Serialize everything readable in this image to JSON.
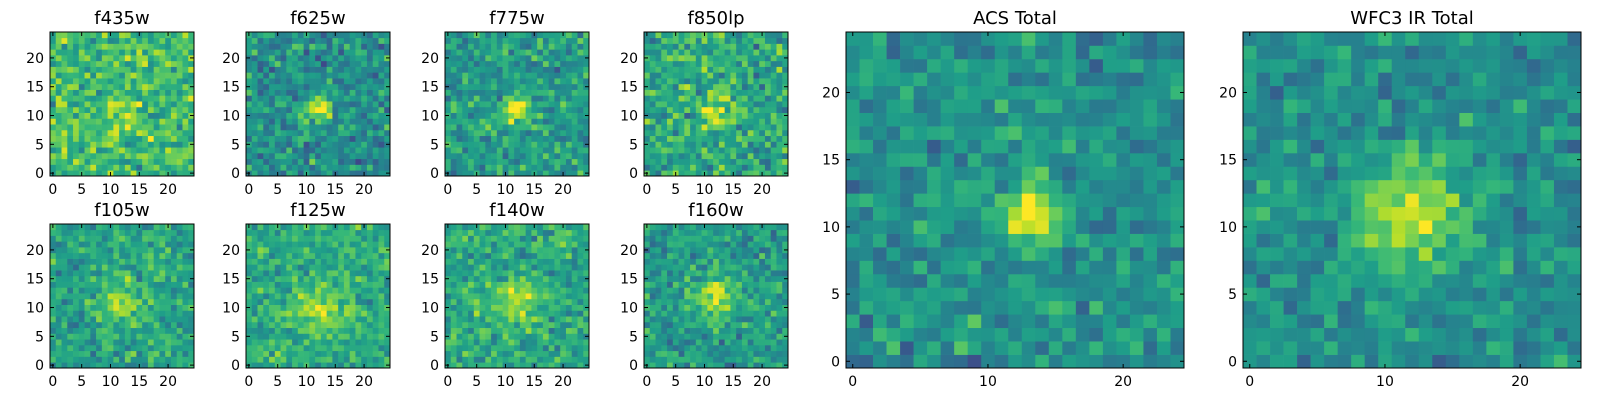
{
  "chart_data": [
    {
      "type": "heatmap",
      "title": "f435w",
      "colormap": "viridis",
      "grid_size": [
        25,
        25
      ],
      "xlim": [
        -0.5,
        24.5
      ],
      "ylim": [
        -0.5,
        24.5
      ],
      "xticks": [
        0,
        5,
        10,
        15,
        20
      ],
      "yticks": [
        0,
        5,
        10,
        15,
        20
      ],
      "xtick_labels": [
        "0",
        "5",
        "10",
        "15",
        "20"
      ],
      "ytick_labels": [
        "0",
        "5",
        "10",
        "15",
        "20"
      ],
      "source": {
        "x": 12,
        "y": 11,
        "strength": 0.15,
        "width": 2.0
      },
      "noise": 0.32,
      "base": 0.68,
      "seed": 11
    },
    {
      "type": "heatmap",
      "title": "f625w",
      "colormap": "viridis",
      "grid_size": [
        25,
        25
      ],
      "xlim": [
        -0.5,
        24.5
      ],
      "ylim": [
        -0.5,
        24.5
      ],
      "xticks": [
        0,
        5,
        10,
        15,
        20
      ],
      "yticks": [
        0,
        5,
        10,
        15,
        20
      ],
      "xtick_labels": [
        "0",
        "5",
        "10",
        "15",
        "20"
      ],
      "ytick_labels": [
        "0",
        "5",
        "10",
        "15",
        "20"
      ],
      "source": {
        "x": 12,
        "y": 11,
        "strength": 0.5,
        "width": 1.5
      },
      "noise": 0.3,
      "base": 0.5,
      "seed": 23
    },
    {
      "type": "heatmap",
      "title": "f775w",
      "colormap": "viridis",
      "grid_size": [
        25,
        25
      ],
      "xlim": [
        -0.5,
        24.5
      ],
      "ylim": [
        -0.5,
        24.5
      ],
      "xticks": [
        0,
        5,
        10,
        15,
        20
      ],
      "yticks": [
        0,
        5,
        10,
        15,
        20
      ],
      "xtick_labels": [
        "0",
        "5",
        "10",
        "15",
        "20"
      ],
      "ytick_labels": [
        "0",
        "5",
        "10",
        "15",
        "20"
      ],
      "source": {
        "x": 12,
        "y": 11,
        "strength": 0.45,
        "width": 1.6
      },
      "noise": 0.28,
      "base": 0.55,
      "seed": 37
    },
    {
      "type": "heatmap",
      "title": "f850lp",
      "colormap": "viridis",
      "grid_size": [
        25,
        25
      ],
      "xlim": [
        -0.5,
        24.5
      ],
      "ylim": [
        -0.5,
        24.5
      ],
      "xticks": [
        0,
        5,
        10,
        15,
        20
      ],
      "yticks": [
        0,
        5,
        10,
        15,
        20
      ],
      "xtick_labels": [
        "0",
        "5",
        "10",
        "15",
        "20"
      ],
      "ytick_labels": [
        "0",
        "5",
        "10",
        "15",
        "20"
      ],
      "source": {
        "x": 12,
        "y": 11,
        "strength": 0.35,
        "width": 1.8
      },
      "noise": 0.32,
      "base": 0.6,
      "seed": 41
    },
    {
      "type": "heatmap",
      "title": "f105w",
      "colormap": "viridis",
      "grid_size": [
        25,
        25
      ],
      "xlim": [
        -0.5,
        24.5
      ],
      "ylim": [
        -0.5,
        24.5
      ],
      "xticks": [
        0,
        5,
        10,
        15,
        20
      ],
      "yticks": [
        0,
        5,
        10,
        15,
        20
      ],
      "xtick_labels": [
        "0",
        "5",
        "10",
        "15",
        "20"
      ],
      "ytick_labels": [
        "0",
        "5",
        "10",
        "15",
        "20"
      ],
      "source": {
        "x": 12,
        "y": 11,
        "strength": 0.3,
        "width": 2.5
      },
      "noise": 0.26,
      "base": 0.58,
      "seed": 53
    },
    {
      "type": "heatmap",
      "title": "f125w",
      "colormap": "viridis",
      "grid_size": [
        25,
        25
      ],
      "xlim": [
        -0.5,
        24.5
      ],
      "ylim": [
        -0.5,
        24.5
      ],
      "xticks": [
        0,
        5,
        10,
        15,
        20
      ],
      "yticks": [
        0,
        5,
        10,
        15,
        20
      ],
      "xtick_labels": [
        "0",
        "5",
        "10",
        "15",
        "20"
      ],
      "ytick_labels": [
        "0",
        "5",
        "10",
        "15",
        "20"
      ],
      "source": {
        "x": 12,
        "y": 10,
        "strength": 0.25,
        "width": 3.0
      },
      "noise": 0.24,
      "base": 0.62,
      "seed": 67
    },
    {
      "type": "heatmap",
      "title": "f140w",
      "colormap": "viridis",
      "grid_size": [
        25,
        25
      ],
      "xlim": [
        -0.5,
        24.5
      ],
      "ylim": [
        -0.5,
        24.5
      ],
      "xticks": [
        0,
        5,
        10,
        15,
        20
      ],
      "yticks": [
        0,
        5,
        10,
        15,
        20
      ],
      "xtick_labels": [
        "0",
        "5",
        "10",
        "15",
        "20"
      ],
      "ytick_labels": [
        "0",
        "5",
        "10",
        "15",
        "20"
      ],
      "source": {
        "x": 12,
        "y": 11,
        "strength": 0.25,
        "width": 2.8
      },
      "noise": 0.26,
      "base": 0.6,
      "seed": 71
    },
    {
      "type": "heatmap",
      "title": "f160w",
      "colormap": "viridis",
      "grid_size": [
        25,
        25
      ],
      "xlim": [
        -0.5,
        24.5
      ],
      "ylim": [
        -0.5,
        24.5
      ],
      "xticks": [
        0,
        5,
        10,
        15,
        20
      ],
      "yticks": [
        0,
        5,
        10,
        15,
        20
      ],
      "xtick_labels": [
        "0",
        "5",
        "10",
        "15",
        "20"
      ],
      "ytick_labels": [
        "0",
        "5",
        "10",
        "15",
        "20"
      ],
      "source": {
        "x": 12,
        "y": 12,
        "strength": 0.35,
        "width": 2.5
      },
      "noise": 0.26,
      "base": 0.55,
      "seed": 83
    },
    {
      "type": "heatmap",
      "title": "ACS Total",
      "colormap": "viridis",
      "grid_size": [
        25,
        25
      ],
      "xlim": [
        -0.5,
        24.5
      ],
      "ylim": [
        -0.5,
        24.5
      ],
      "xticks": [
        0,
        10,
        20
      ],
      "yticks": [
        0,
        5,
        10,
        15,
        20
      ],
      "xtick_labels": [
        "0",
        "10",
        "20"
      ],
      "ytick_labels": [
        "0",
        "5",
        "10",
        "15",
        "20"
      ],
      "source": {
        "x": 13,
        "y": 11,
        "strength": 0.55,
        "width": 1.5
      },
      "noise": 0.24,
      "base": 0.5,
      "seed": 97
    },
    {
      "type": "heatmap",
      "title": "WFC3 IR Total",
      "colormap": "viridis",
      "grid_size": [
        25,
        25
      ],
      "xlim": [
        -0.5,
        24.5
      ],
      "ylim": [
        -0.5,
        24.5
      ],
      "xticks": [
        0,
        10,
        20
      ],
      "yticks": [
        0,
        5,
        10,
        15,
        20
      ],
      "xtick_labels": [
        "0",
        "10",
        "20"
      ],
      "ytick_labels": [
        "0",
        "5",
        "10",
        "15",
        "20"
      ],
      "source": {
        "x": 12,
        "y": 11,
        "strength": 0.4,
        "width": 3.0
      },
      "noise": 0.22,
      "base": 0.5,
      "seed": 101
    }
  ],
  "colors": {
    "axis_line": "#000000",
    "background": "#ffffff"
  }
}
